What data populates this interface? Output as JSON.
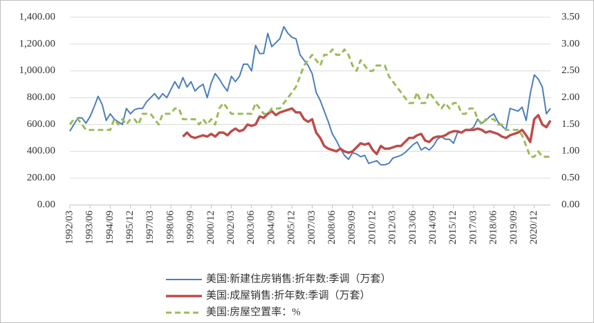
{
  "chart_data": {
    "type": "line",
    "categories": [
      "1992/03",
      null,
      null,
      null,
      null,
      "1993/06",
      null,
      null,
      null,
      null,
      "1994/09",
      null,
      null,
      null,
      null,
      "1995/12",
      null,
      null,
      null,
      null,
      "1997/03",
      null,
      null,
      null,
      null,
      "1998/06",
      null,
      null,
      null,
      null,
      "1999/09",
      null,
      null,
      null,
      null,
      "2000/12",
      null,
      null,
      null,
      null,
      "2002/03",
      null,
      null,
      null,
      null,
      "2003/06",
      null,
      null,
      null,
      null,
      "2004/09",
      null,
      null,
      null,
      null,
      "2005/12",
      null,
      null,
      null,
      null,
      "2007/03",
      null,
      null,
      null,
      null,
      "2008/06",
      null,
      null,
      null,
      null,
      "2009/09",
      null,
      null,
      null,
      null,
      "2010/12",
      null,
      null,
      null,
      null,
      "2012/03",
      null,
      null,
      null,
      null,
      "2013/06",
      null,
      null,
      null,
      null,
      "2014/09",
      null,
      null,
      null,
      null,
      "2015/12",
      null,
      null,
      null,
      null,
      "2017/03",
      null,
      null,
      null,
      null,
      "2018/06",
      null,
      null,
      null,
      null,
      "2019/09",
      null,
      null,
      null,
      null,
      "2020/12",
      null,
      null,
      null,
      null
    ],
    "series": [
      {
        "name": "美国:新建住房销售:折年数:季调（万套）",
        "color": "#4a7ebb",
        "values": [
          550,
          600,
          650,
          650,
          610,
          660,
          730,
          810,
          750,
          630,
          680,
          640,
          620,
          600,
          720,
          680,
          710,
          720,
          720,
          770,
          800,
          830,
          790,
          830,
          800,
          860,
          920,
          870,
          950,
          880,
          920,
          850,
          880,
          900,
          800,
          910,
          980,
          940,
          890,
          850,
          960,
          920,
          960,
          1050,
          1050,
          1000,
          1190,
          1130,
          1130,
          1280,
          1180,
          1210,
          1240,
          1330,
          1280,
          1250,
          1240,
          1120,
          1080,
          1040,
          980,
          840,
          780,
          700,
          620,
          530,
          480,
          420,
          370,
          340,
          390,
          380,
          360,
          370,
          310,
          320,
          330,
          300,
          300,
          310,
          350,
          360,
          370,
          390,
          420,
          450,
          470,
          410,
          430,
          410,
          440,
          490,
          510,
          490,
          490,
          460,
          540,
          540,
          560,
          560,
          580,
          640,
          610,
          630,
          660,
          680,
          620,
          590,
          560,
          720,
          710,
          700,
          730,
          630,
          830,
          970,
          940,
          880,
          680,
          720
        ]
      },
      {
        "name": "美国:成屋销售:折年数:季调（万套）",
        "color": "#be4b48",
        "values": [
          null,
          null,
          null,
          null,
          null,
          null,
          null,
          null,
          null,
          null,
          null,
          null,
          null,
          null,
          null,
          null,
          null,
          null,
          null,
          null,
          null,
          null,
          null,
          null,
          null,
          null,
          null,
          null,
          510,
          540,
          510,
          500,
          510,
          520,
          510,
          530,
          510,
          540,
          540,
          520,
          550,
          570,
          550,
          560,
          600,
          590,
          600,
          660,
          650,
          680,
          700,
          670,
          690,
          700,
          710,
          720,
          690,
          690,
          640,
          620,
          640,
          540,
          500,
          440,
          420,
          410,
          400,
          420,
          400,
          390,
          400,
          430,
          460,
          450,
          460,
          410,
          380,
          440,
          420,
          420,
          430,
          440,
          440,
          470,
          500,
          500,
          520,
          530,
          480,
          470,
          500,
          510,
          510,
          520,
          540,
          550,
          550,
          540,
          560,
          560,
          560,
          570,
          560,
          540,
          550,
          540,
          530,
          510,
          500,
          520,
          530,
          540,
          560,
          520,
          470,
          640,
          670,
          600,
          580,
          630
        ]
      },
      {
        "name": "美国:房屋空置率：%",
        "color": "#9bbb59",
        "axis": "y2",
        "dashed": true,
        "values": [
          1.5,
          1.6,
          1.6,
          1.5,
          1.4,
          1.4,
          1.4,
          1.4,
          1.4,
          1.4,
          1.4,
          1.6,
          1.5,
          1.6,
          1.5,
          1.6,
          1.6,
          1.5,
          1.7,
          1.7,
          1.7,
          1.6,
          1.5,
          1.7,
          1.7,
          1.7,
          1.8,
          1.8,
          1.6,
          1.6,
          1.6,
          1.6,
          1.5,
          1.6,
          1.5,
          1.6,
          1.5,
          1.8,
          1.9,
          1.8,
          1.7,
          1.7,
          1.7,
          1.7,
          1.7,
          1.7,
          1.9,
          1.8,
          1.7,
          1.7,
          1.8,
          1.8,
          1.8,
          1.9,
          2.0,
          2.1,
          2.2,
          2.4,
          2.6,
          2.7,
          2.8,
          2.7,
          2.6,
          2.8,
          2.8,
          2.9,
          2.8,
          2.8,
          2.9,
          2.8,
          2.6,
          2.5,
          2.7,
          2.6,
          2.5,
          2.5,
          2.6,
          2.6,
          2.6,
          2.4,
          2.3,
          2.2,
          2.1,
          2.0,
          1.9,
          1.9,
          2.1,
          1.9,
          1.9,
          2.1,
          2.0,
          1.9,
          1.8,
          1.9,
          1.8,
          1.9,
          1.9,
          1.7,
          1.7,
          1.8,
          1.8,
          1.6,
          1.5,
          1.6,
          1.6,
          1.6,
          1.5,
          1.5,
          1.4,
          1.4,
          1.4,
          1.4,
          1.3,
          1.1,
          0.9,
          0.9,
          1.0,
          0.9,
          0.9,
          0.9
        ]
      }
    ],
    "ylim": [
      0,
      1400
    ],
    "yticks": [
      {
        "value": 0,
        "label": "0.00"
      },
      {
        "value": 200,
        "label": "200.00"
      },
      {
        "value": 400,
        "label": "400.00"
      },
      {
        "value": 600,
        "label": "600.00"
      },
      {
        "value": 800,
        "label": "800.00"
      },
      {
        "value": 1000,
        "label": "1,000.00"
      },
      {
        "value": 1200,
        "label": "1,200.00"
      },
      {
        "value": 1400,
        "label": "1,400.00"
      }
    ],
    "y2lim": [
      0,
      3.5
    ],
    "y2ticks": [
      {
        "value": 0,
        "label": "0.00"
      },
      {
        "value": 0.5,
        "label": "0.50"
      },
      {
        "value": 1,
        "label": "1.00"
      },
      {
        "value": 1.5,
        "label": "1.50"
      },
      {
        "value": 2,
        "label": "2.00"
      },
      {
        "value": 2.5,
        "label": "2.50"
      },
      {
        "value": 3,
        "label": "3.00"
      },
      {
        "value": 3.5,
        "label": "3.50"
      }
    ],
    "grid": true,
    "legend": "bottom"
  }
}
